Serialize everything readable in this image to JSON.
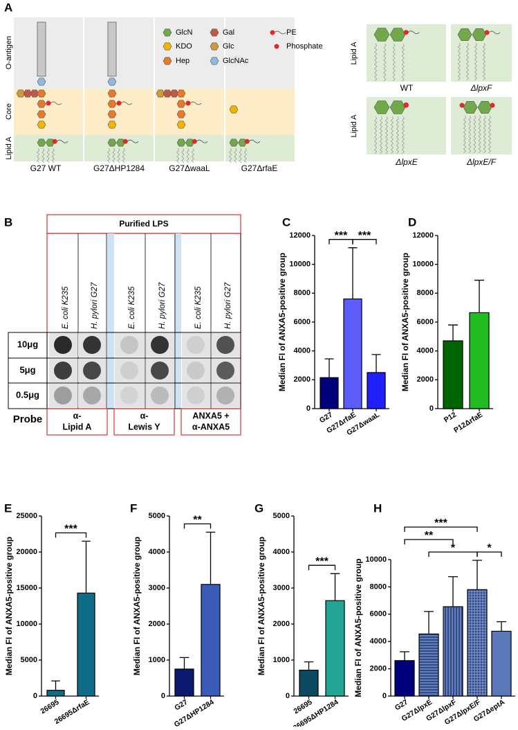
{
  "diagram": {
    "panel": "A",
    "regions": [
      "O-antigen",
      "Core",
      "Lipid A"
    ],
    "legend": [
      {
        "name": "GlcN",
        "color": "#70a84a"
      },
      {
        "name": "Gal",
        "color": "#c0584a"
      },
      {
        "name": "KDO",
        "color": "#f5b400"
      },
      {
        "name": "Glc",
        "color": "#d09a3a"
      },
      {
        "name": "Hep",
        "color": "#e8782a"
      },
      {
        "name": "GlcNAc",
        "color": "#8fbbe3"
      },
      {
        "name": "PE",
        "color": "#e02a2a"
      },
      {
        "name": "Phosphate",
        "color": "#e02a2a"
      }
    ],
    "strains": [
      "G27 WT",
      "G27ΔHP1284",
      "G27ΔwaaL",
      "G27ΔrfaE"
    ],
    "lipid_a_axis": [
      "Lipid A",
      "Lipid A"
    ],
    "lipid_a_variants": [
      "WT",
      "ΔlpxF",
      "ΔlpxE",
      "ΔlpxE/F"
    ]
  },
  "blot": {
    "panel": "B",
    "title": "Purified LPS",
    "columns": [
      "E. coli K235",
      "H. pylori G27",
      "E. coli K235",
      "H. pylori G27",
      "E. coli K235",
      "H. pylori G27"
    ],
    "rows": [
      "10μg",
      "5μg",
      "0.5μg"
    ],
    "probe_label": "Probe",
    "probes": [
      [
        "α-",
        "Lipid A"
      ],
      [
        "α-",
        "Lewis Y"
      ],
      [
        "ANXA5 +",
        "α-ANXA5"
      ]
    ]
  },
  "chart_data": [
    {
      "type": "bar",
      "panel": "C",
      "ylabel": "Median FI of ANXA5-positive group",
      "categories": [
        "G27",
        "G27ΔrfaE",
        "G27ΔwaaL"
      ],
      "values": [
        2150,
        7600,
        2500
      ],
      "errors": [
        1300,
        3550,
        1250
      ],
      "colors": [
        "#00007a",
        "#5c5cff",
        "#1f1fff"
      ],
      "ylim": [
        0,
        12000
      ],
      "yticks": [
        0,
        2000,
        4000,
        6000,
        8000,
        10000,
        12000
      ],
      "significance": [
        {
          "label": "***",
          "between": [
            0,
            1
          ]
        },
        {
          "label": "***",
          "between": [
            1,
            2
          ]
        }
      ]
    },
    {
      "type": "bar",
      "panel": "D",
      "ylabel": "Median FI of ANXA5-positive group",
      "categories": [
        "P12",
        "P12ΔrfaE"
      ],
      "values": [
        4700,
        6650
      ],
      "errors": [
        1100,
        2250
      ],
      "colors": [
        "#006400",
        "#22bb22"
      ],
      "ylim": [
        0,
        12000
      ],
      "yticks": [
        0,
        2000,
        4000,
        6000,
        8000,
        10000,
        12000
      ],
      "significance": []
    },
    {
      "type": "bar",
      "panel": "E",
      "ylabel": "Median FI of ANXA5-positive group",
      "categories": [
        "26695",
        "26695ΔrfaE"
      ],
      "values": [
        800,
        14300
      ],
      "errors": [
        1300,
        7200
      ],
      "colors": [
        "#0e6c86",
        "#0e6c86"
      ],
      "ylim": [
        0,
        25000
      ],
      "yticks": [
        0,
        5000,
        10000,
        15000,
        20000,
        25000
      ],
      "significance": [
        {
          "label": "***",
          "between": [
            0,
            1
          ]
        }
      ]
    },
    {
      "type": "bar",
      "panel": "F",
      "ylabel": "Median FI of ANXA5-positive group",
      "categories": [
        "G27",
        "G27ΔHP1284"
      ],
      "values": [
        750,
        3100
      ],
      "errors": [
        320,
        1450
      ],
      "colors": [
        "#0b1a6e",
        "#3a5cb8"
      ],
      "ylim": [
        0,
        5000
      ],
      "yticks": [
        0,
        1000,
        2000,
        3000,
        4000,
        5000
      ],
      "significance": [
        {
          "label": "**",
          "between": [
            0,
            1
          ]
        }
      ]
    },
    {
      "type": "bar",
      "panel": "G",
      "ylabel": "Median FI of ANXA5-positive group",
      "categories": [
        "26695",
        "26695ΔHP1284"
      ],
      "values": [
        720,
        2650
      ],
      "errors": [
        230,
        750
      ],
      "colors": [
        "#0a4a60",
        "#22a594"
      ],
      "ylim": [
        0,
        5000
      ],
      "yticks": [
        0,
        1000,
        2000,
        3000,
        4000,
        5000
      ],
      "significance": [
        {
          "label": "***",
          "between": [
            0,
            1
          ]
        }
      ]
    },
    {
      "type": "bar",
      "panel": "H",
      "ylabel": "Median FI of ANXA5-positive group",
      "categories": [
        "G27",
        "G27ΔlpxE",
        "G27ΔlpxF",
        "G27ΔlpxE/F",
        "G27ΔeptA"
      ],
      "values": [
        2600,
        4550,
        6550,
        7800,
        4750
      ],
      "errors": [
        650,
        1650,
        2200,
        2150,
        700
      ],
      "colors": [
        "#00007a",
        "#2e4a8c",
        "#2e4a8c",
        "#2e4a8c",
        "#5a78b8"
      ],
      "hatches": [
        "none",
        "horizontal",
        "vertical",
        "grid",
        "none"
      ],
      "ylim": [
        0,
        10000
      ],
      "yticks": [
        0,
        2000,
        4000,
        6000,
        8000,
        10000
      ],
      "significance": [
        {
          "label": "*",
          "between": [
            3,
            4
          ]
        },
        {
          "label": "*",
          "between": [
            1,
            3
          ]
        },
        {
          "label": "**",
          "between": [
            0,
            2
          ]
        },
        {
          "label": "***",
          "between": [
            0,
            3
          ]
        }
      ]
    }
  ]
}
